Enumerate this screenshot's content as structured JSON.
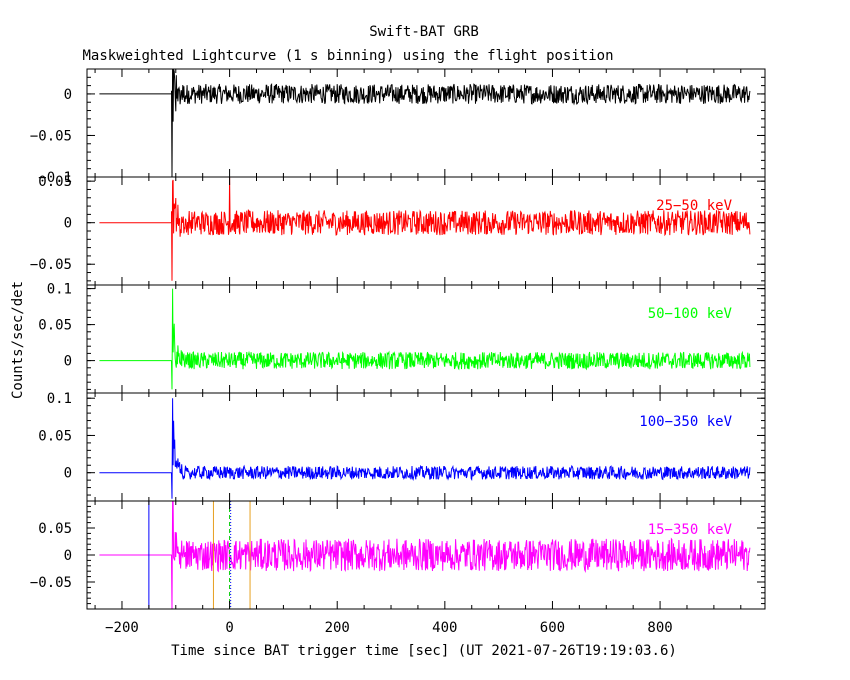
{
  "title": "Swift-BAT GRB",
  "subtitle": "Maskweighted Lightcurve (1 s binning) using the flight position",
  "ylabel": "Counts/sec/det",
  "xlabel": "Time since BAT trigger time [sec] (UT 2021-07-26T19:19:03.6)",
  "chart_data": {
    "type": "line",
    "x_axis": {
      "range": [
        -265,
        995
      ],
      "ticks": [
        -200,
        0,
        200,
        400,
        600,
        800
      ],
      "tick_labels": [
        "−200",
        "0",
        "200",
        "400",
        "600",
        "800"
      ]
    },
    "data_span": {
      "start": -242,
      "pre_burst_end": -108,
      "end": 967
    },
    "panels": [
      {
        "band": "",
        "color": "#000000",
        "ylim": [
          -0.1,
          0.03
        ],
        "ticks": [
          0,
          -0.05,
          -0.1
        ],
        "tick_labels": [
          "0",
          "−0.05",
          "−0.1"
        ],
        "noise_amplitude": 0.012,
        "spike": {
          "peak_time": -107,
          "min_value": -0.1
        }
      },
      {
        "band": "25−50 keV",
        "color": "#ff0000",
        "ylim": [
          -0.075,
          0.055
        ],
        "ticks": [
          0.05,
          0,
          -0.05
        ],
        "tick_labels": [
          "0.05",
          "0",
          "−0.05"
        ],
        "noise_amplitude": 0.015,
        "spike": {
          "peak_time": -107,
          "max_value": 0.05,
          "min_value": -0.07
        },
        "extra_spike": {
          "time": 0,
          "value": 0.055
        }
      },
      {
        "band": "50−100 keV",
        "color": "#00ff00",
        "ylim": [
          -0.045,
          0.105
        ],
        "ticks": [
          0.1,
          0.05,
          0
        ],
        "tick_labels": [
          "0.1",
          "0.05",
          "0"
        ],
        "noise_amplitude": 0.012,
        "spike": {
          "peak_time": -107,
          "max_value": 0.1,
          "min_value": -0.04
        }
      },
      {
        "band": "100−350 keV",
        "color": "#0000ff",
        "ylim": [
          -0.038,
          0.107
        ],
        "ticks": [
          0.1,
          0.05,
          0
        ],
        "tick_labels": [
          "0.1",
          "0.05",
          "0"
        ],
        "noise_amplitude": 0.009,
        "spike": {
          "peak_time": -107,
          "max_value": 0.1,
          "min_value": -0.035
        }
      },
      {
        "band": "15−350 keV",
        "color": "#ff00ff",
        "ylim": [
          -0.1,
          0.1
        ],
        "ticks": [
          0.05,
          0,
          -0.05
        ],
        "tick_labels": [
          "0.05",
          "0",
          "−0.05"
        ],
        "noise_amplitude": 0.03,
        "spike": {
          "peak_time": -107,
          "max_value": 0.1,
          "min_value": -0.1
        },
        "markers": [
          {
            "time": -150,
            "color": "#0000ff",
            "style": "solid"
          },
          {
            "time": -30,
            "color": "#e6a020",
            "style": "solid"
          },
          {
            "time": 0,
            "color": "#00cc00",
            "style": "dashed"
          },
          {
            "time": 2,
            "color": "#0000ff",
            "style": "dotted"
          },
          {
            "time": 38,
            "color": "#e6a020",
            "style": "solid"
          }
        ]
      }
    ]
  }
}
